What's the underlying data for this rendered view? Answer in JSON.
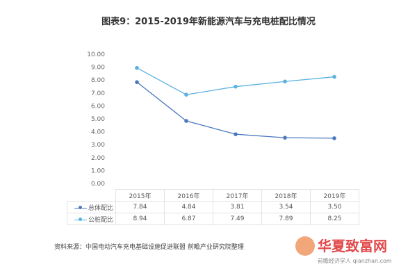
{
  "chart_data": {
    "type": "line",
    "title": "图表9：2015-2019年新能源汽车与充电桩配比情况",
    "categories": [
      "2015年",
      "2016年",
      "2017年",
      "2018年",
      "2019年"
    ],
    "ylim": [
      0,
      10
    ],
    "yticks": [
      "0.00",
      "1.00",
      "2.00",
      "3.00",
      "4.00",
      "5.00",
      "6.00",
      "7.00",
      "8.00",
      "9.00",
      "10.00"
    ],
    "grid": false,
    "legend": "table-bottom",
    "series": [
      {
        "name": "总体配比",
        "values": [
          7.84,
          4.84,
          3.81,
          3.54,
          3.5
        ],
        "labels": [
          "7.84",
          "4.84",
          "3.81",
          "3.54",
          "3.50"
        ],
        "color": "#4a78c0"
      },
      {
        "name": "公桩配比",
        "values": [
          8.94,
          6.87,
          7.49,
          7.89,
          8.25
        ],
        "labels": [
          "8.94",
          "6.87",
          "7.49",
          "7.89",
          "8.25"
        ],
        "color": "#5bb2e0"
      }
    ]
  },
  "source": "资料来源：中国电动汽车充电基础设施促进联盟 前瞻产业研究院整理",
  "logo": {
    "text": "华夏致富网",
    "sub": "前瞻经济学人 qianzhan.com"
  }
}
